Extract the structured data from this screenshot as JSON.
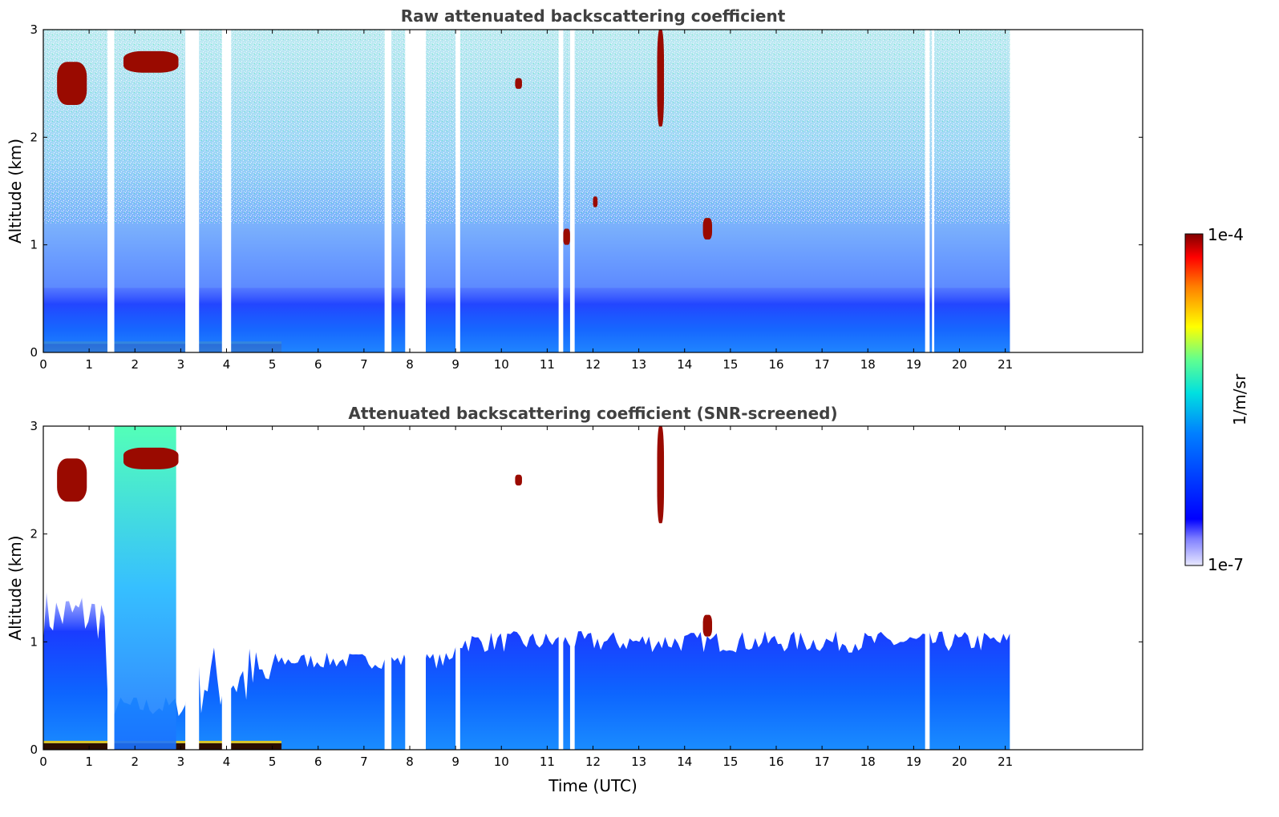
{
  "chart_data": [
    {
      "type": "heatmap",
      "title": "Raw attenuated backscattering coefficient",
      "xlabel": "",
      "ylabel": "Altitude (km)",
      "xlim": [
        0,
        24
      ],
      "ylim": [
        0,
        3
      ],
      "x_ticks": [
        "0",
        "1",
        "2",
        "3",
        "4",
        "5",
        "6",
        "7",
        "8",
        "9",
        "10",
        "11",
        "12",
        "13",
        "14",
        "15",
        "16",
        "17",
        "18",
        "19",
        "20",
        "21"
      ],
      "y_ticks": [
        "0",
        "1",
        "2",
        "3"
      ],
      "data_end_x": 21.1,
      "features": [
        {
          "kind": "surface-layer",
          "x_range": [
            0,
            5.2
          ],
          "y_range": [
            0,
            0.08
          ],
          "level": "high"
        },
        {
          "kind": "boundary-layer",
          "x_range": [
            0,
            21.1
          ],
          "y_range": [
            0,
            0.6
          ],
          "level": "medium"
        },
        {
          "kind": "cloud",
          "x_range": [
            0.3,
            0.95
          ],
          "y_range": [
            2.3,
            2.7
          ],
          "level": "high"
        },
        {
          "kind": "cloud",
          "x_range": [
            1.75,
            2.95
          ],
          "y_range": [
            2.6,
            2.8
          ],
          "level": "high"
        },
        {
          "kind": "cloud",
          "x_range": [
            10.3,
            10.45
          ],
          "y_range": [
            2.45,
            2.55
          ],
          "level": "high"
        },
        {
          "kind": "cloud",
          "x_range": [
            14.4,
            14.6
          ],
          "y_range": [
            1.05,
            1.25
          ],
          "level": "high"
        },
        {
          "kind": "cloud",
          "x_range": [
            12,
            12.1
          ],
          "y_range": [
            1.35,
            1.45
          ],
          "level": "high"
        },
        {
          "kind": "cloud",
          "x_range": [
            13.4,
            13.55
          ],
          "y_range": [
            2.1,
            3.0
          ],
          "level": "high"
        },
        {
          "kind": "cloud",
          "x_range": [
            11.35,
            11.5
          ],
          "y_range": [
            1.0,
            1.15
          ],
          "level": "high"
        }
      ],
      "gaps": [
        [
          1.4,
          1.55
        ],
        [
          3.1,
          3.4
        ],
        [
          3.9,
          4.1
        ],
        [
          7.45,
          7.6
        ],
        [
          7.9,
          8.35
        ],
        [
          9.0,
          9.1
        ],
        [
          11.25,
          11.35
        ],
        [
          11.5,
          11.6
        ],
        [
          19.25,
          19.35
        ],
        [
          19.4,
          19.45
        ]
      ]
    },
    {
      "type": "heatmap",
      "title": "Attenuated backscattering coefficient (SNR-screened)",
      "xlabel": "Time (UTC)",
      "ylabel": "Altitude (km)",
      "xlim": [
        0,
        24
      ],
      "ylim": [
        0,
        3
      ],
      "x_ticks": [
        "0",
        "1",
        "2",
        "3",
        "4",
        "5",
        "6",
        "7",
        "8",
        "9",
        "10",
        "11",
        "12",
        "13",
        "14",
        "15",
        "16",
        "17",
        "18",
        "19",
        "20",
        "21"
      ],
      "y_ticks": [
        "0",
        "1",
        "2",
        "3"
      ],
      "data_end_x": 21.1,
      "features": [
        {
          "kind": "surface-layer",
          "x_range": [
            0,
            5.2
          ],
          "y_range": [
            0,
            0.06
          ],
          "level": "high"
        },
        {
          "kind": "boundary-layer",
          "x_range": [
            0,
            21.1
          ],
          "y_range": [
            0,
            1.0
          ],
          "level": "medium"
        },
        {
          "kind": "aerosol-plume",
          "x_range": [
            1.5,
            2.9
          ],
          "y_range": [
            0,
            3.0
          ],
          "level": "medium"
        },
        {
          "kind": "cloud",
          "x_range": [
            0.3,
            0.95
          ],
          "y_range": [
            2.3,
            2.7
          ],
          "level": "high"
        },
        {
          "kind": "cloud",
          "x_range": [
            1.75,
            2.95
          ],
          "y_range": [
            2.6,
            2.8
          ],
          "level": "high"
        },
        {
          "kind": "cloud",
          "x_range": [
            10.3,
            10.45
          ],
          "y_range": [
            2.45,
            2.55
          ],
          "level": "high"
        },
        {
          "kind": "cloud",
          "x_range": [
            14.4,
            14.6
          ],
          "y_range": [
            1.05,
            1.25
          ],
          "level": "high"
        },
        {
          "kind": "cloud",
          "x_range": [
            13.4,
            13.55
          ],
          "y_range": [
            2.1,
            3.0
          ],
          "level": "high"
        }
      ],
      "gaps": [
        [
          1.4,
          1.55
        ],
        [
          3.1,
          3.4
        ],
        [
          3.9,
          4.1
        ],
        [
          7.45,
          7.6
        ],
        [
          7.9,
          8.35
        ],
        [
          9.0,
          9.1
        ],
        [
          11.25,
          11.35
        ],
        [
          11.5,
          11.6
        ],
        [
          19.25,
          19.35
        ]
      ]
    }
  ],
  "colorbar": {
    "label": "1/m/sr",
    "min_label": "1e-7",
    "max_label": "1e-4",
    "scale": "log",
    "colormap": "jet",
    "placement": "right"
  },
  "colors": {
    "low": "#0000ff",
    "mid": "#00ffff",
    "high": "#ffff00",
    "max": "#800000",
    "axis": "#000000",
    "title": "#404040"
  }
}
